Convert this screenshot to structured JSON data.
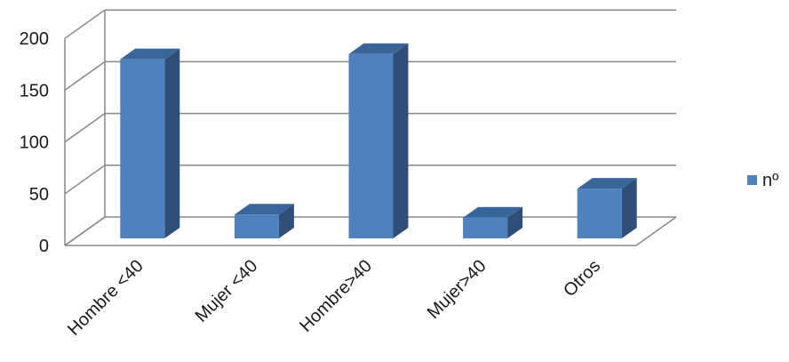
{
  "chart_data": {
    "type": "bar",
    "style": "3d-clustered-column",
    "categories": [
      "Hombre <40",
      "Mujer <40",
      "Hombre>40",
      "Mujer>40",
      "Otros"
    ],
    "series": [
      {
        "name": "nº",
        "values": [
          173,
          23,
          178,
          20,
          48
        ]
      }
    ],
    "ylim": [
      0,
      200
    ],
    "yticks": [
      0,
      50,
      100,
      150,
      200
    ],
    "grid": true,
    "legend": "right",
    "colors": {
      "bar_front": "#4f81bd",
      "bar_side": "#2f4f78",
      "bar_top": "#3a659a",
      "grid": "#888888"
    }
  }
}
